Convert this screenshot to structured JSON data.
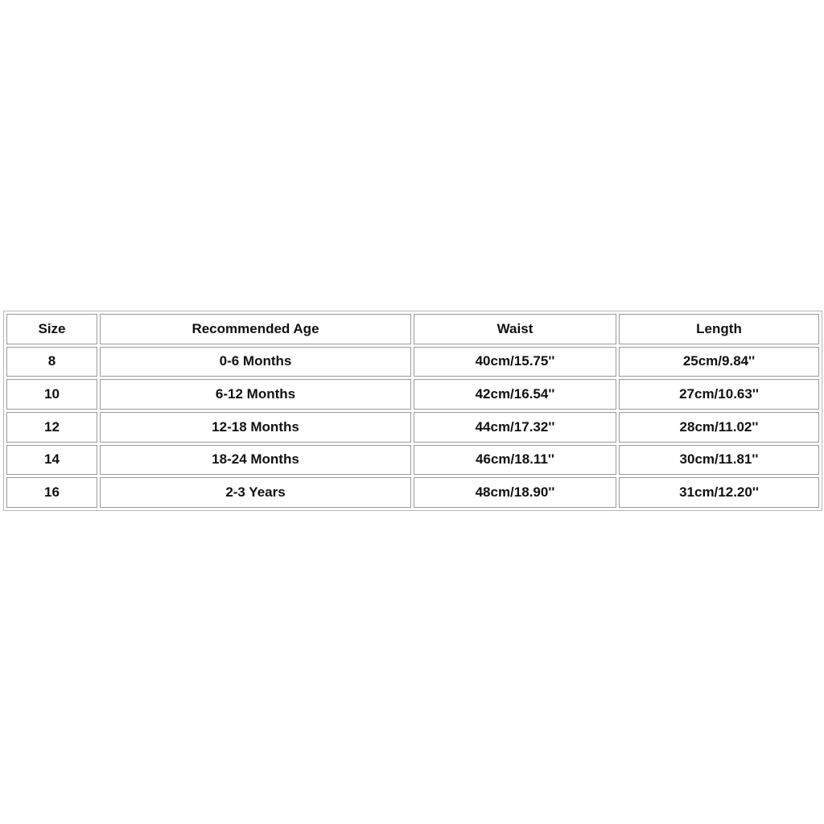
{
  "size_chart": {
    "headers": [
      "Size",
      "Recommended Age",
      "Waist",
      "Length"
    ],
    "rows": [
      [
        "8",
        "0-6 Months",
        "40cm/15.75''",
        "25cm/9.84''"
      ],
      [
        "10",
        "6-12 Months",
        "42cm/16.54''",
        "27cm/10.63''"
      ],
      [
        "12",
        "12-18 Months",
        "44cm/17.32''",
        "28cm/11.02''"
      ],
      [
        "14",
        "18-24 Months",
        "46cm/18.11''",
        "30cm/11.81''"
      ],
      [
        "16",
        "2-3 Years",
        "48cm/18.90''",
        "31cm/12.20''"
      ]
    ]
  }
}
